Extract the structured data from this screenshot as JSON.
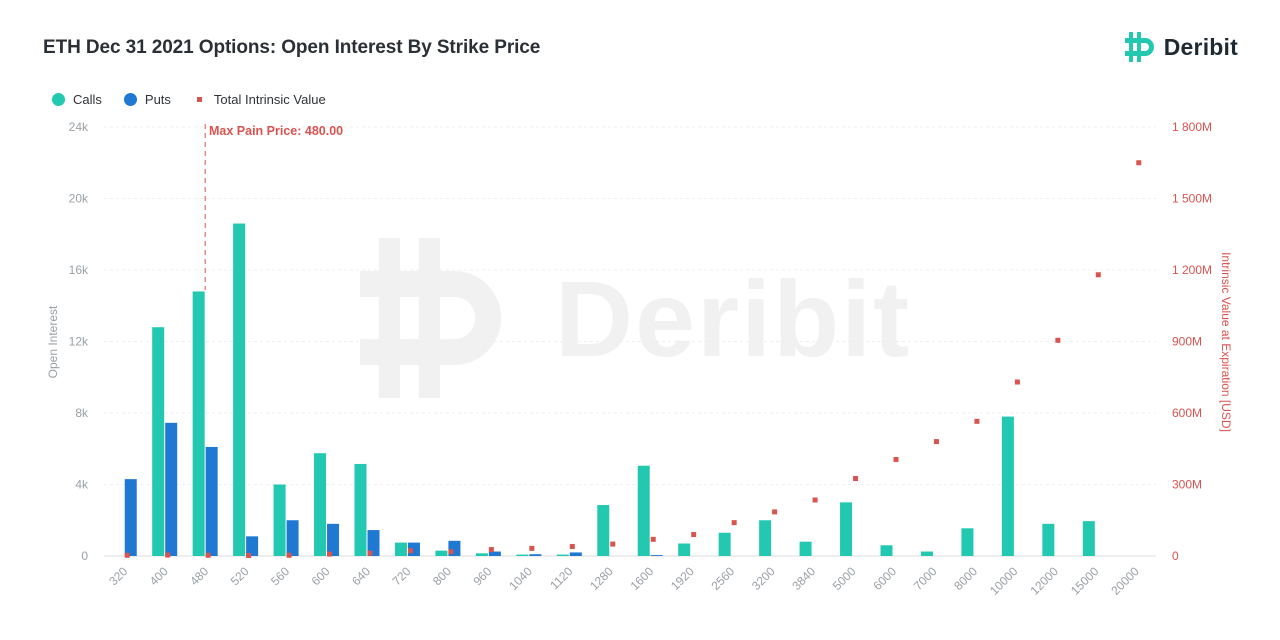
{
  "header": {
    "title": "ETH Dec 31 2021 Options: Open Interest By Strike Price",
    "brand": "Deribit"
  },
  "watermark": {
    "text": "Deribit"
  },
  "colors": {
    "calls": "#22c9b0",
    "puts": "#1f78d1",
    "intrinsic": "#d9534f",
    "brand": "#22c9b0"
  },
  "legend": [
    {
      "label": "Calls",
      "color": "#22c9b0",
      "shape": "circle"
    },
    {
      "label": "Puts",
      "color": "#1f78d1",
      "shape": "circle"
    },
    {
      "label": "Total Intrinsic Value",
      "color": "#d9534f",
      "shape": "square"
    }
  ],
  "annotation": {
    "label": "Max Pain Price: 480.00",
    "strike": "480"
  },
  "chart_data": {
    "type": "bar",
    "categories": [
      "320",
      "400",
      "480",
      "520",
      "560",
      "600",
      "640",
      "720",
      "800",
      "960",
      "1040",
      "1120",
      "1280",
      "1600",
      "1920",
      "2560",
      "3200",
      "3840",
      "5000",
      "6000",
      "7000",
      "8000",
      "10000",
      "12000",
      "15000",
      "20000"
    ],
    "series": [
      {
        "name": "Calls",
        "axis": "left",
        "values": [
          0,
          12800,
          14800,
          18600,
          4000,
          5750,
          5150,
          750,
          300,
          150,
          80,
          80,
          2850,
          5050,
          700,
          1300,
          2000,
          800,
          3000,
          600,
          250,
          1550,
          7800,
          1800,
          1950,
          0
        ]
      },
      {
        "name": "Puts",
        "axis": "left",
        "values": [
          4300,
          7450,
          6100,
          1100,
          2000,
          1800,
          1450,
          750,
          850,
          250,
          100,
          200,
          0,
          50,
          0,
          0,
          0,
          0,
          0,
          0,
          0,
          0,
          0,
          0,
          0,
          0
        ]
      },
      {
        "name": "Total Intrinsic Value",
        "axis": "right",
        "type": "scatter",
        "values": [
          3,
          4,
          3,
          2,
          3,
          8,
          12,
          22,
          18,
          27,
          32,
          40,
          50,
          70,
          90,
          140,
          185,
          235,
          325,
          405,
          480,
          565,
          730,
          905,
          1180,
          1650
        ]
      }
    ],
    "ylabel": "Open Interest",
    "y2label": "Intrinsic Value at Expiration [USD]",
    "ylim": [
      0,
      24000
    ],
    "y2lim": [
      0,
      1800
    ],
    "yticks": [
      "0",
      "4k",
      "8k",
      "12k",
      "16k",
      "20k",
      "24k"
    ],
    "y2ticks": [
      "0",
      "300M",
      "600M",
      "900M",
      "1 200M",
      "1 500M",
      "1 800M"
    ],
    "grid": true
  }
}
